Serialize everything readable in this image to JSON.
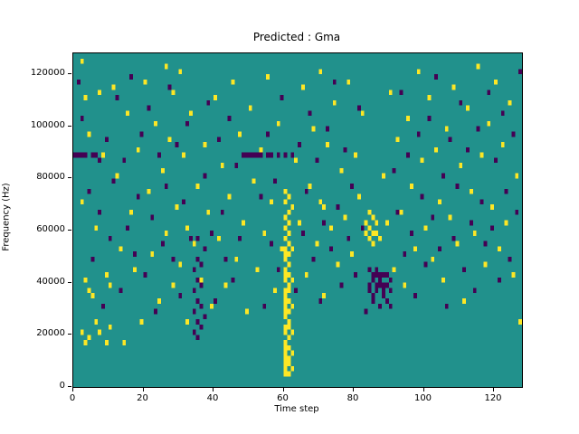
{
  "figure": {
    "title": "Predicted : Gma",
    "xlabel": "Time step",
    "ylabel": "Frequency (Hz)"
  },
  "chart_data": {
    "type": "heatmap",
    "title": "Predicted : Gma",
    "xlabel": "Time step",
    "ylabel": "Frequency (Hz)",
    "xlim": [
      0,
      128
    ],
    "ylim": [
      0,
      128000
    ],
    "xticks": [
      0,
      20,
      40,
      60,
      80,
      100,
      120
    ],
    "yticks": [
      0,
      20000,
      40000,
      60000,
      80000,
      100000,
      120000
    ],
    "grid": {
      "cols": 128,
      "rows": 64,
      "cell_hz": 2000
    },
    "colors": {
      "background": "#21918c",
      "positive": "#fde725",
      "negative": "#440154"
    },
    "legend": "none",
    "cells_yellow": [
      [
        60,
        2
      ],
      [
        60,
        3
      ],
      [
        60,
        4
      ],
      [
        60,
        5
      ],
      [
        60,
        6
      ],
      [
        60,
        7
      ],
      [
        60,
        8
      ],
      [
        60,
        10
      ],
      [
        60,
        11
      ],
      [
        60,
        13
      ],
      [
        60,
        14
      ],
      [
        60,
        15
      ],
      [
        60,
        16
      ],
      [
        60,
        17
      ],
      [
        60,
        18
      ],
      [
        60,
        20
      ],
      [
        60,
        21
      ],
      [
        60,
        22
      ],
      [
        60,
        24
      ],
      [
        60,
        25
      ],
      [
        60,
        26
      ],
      [
        60,
        28
      ],
      [
        60,
        30
      ],
      [
        60,
        32
      ],
      [
        60,
        35
      ],
      [
        60,
        37
      ],
      [
        61,
        2
      ],
      [
        61,
        4
      ],
      [
        61,
        5
      ],
      [
        61,
        7
      ],
      [
        61,
        9
      ],
      [
        61,
        11
      ],
      [
        61,
        12
      ],
      [
        61,
        14
      ],
      [
        61,
        16
      ],
      [
        61,
        18
      ],
      [
        61,
        19
      ],
      [
        61,
        21
      ],
      [
        61,
        23
      ],
      [
        61,
        25
      ],
      [
        61,
        27
      ],
      [
        61,
        29
      ],
      [
        61,
        31
      ],
      [
        61,
        33
      ],
      [
        61,
        36
      ],
      [
        62,
        3
      ],
      [
        62,
        6
      ],
      [
        62,
        10
      ],
      [
        62,
        15
      ],
      [
        62,
        20
      ],
      [
        62,
        26
      ],
      [
        62,
        34
      ],
      [
        83,
        29
      ],
      [
        83,
        31
      ],
      [
        84,
        28
      ],
      [
        84,
        30
      ],
      [
        84,
        33
      ],
      [
        85,
        27
      ],
      [
        85,
        29
      ],
      [
        85,
        32
      ],
      [
        86,
        29
      ],
      [
        86,
        31
      ],
      [
        70,
        35
      ],
      [
        71,
        34
      ],
      [
        2,
        10
      ],
      [
        3,
        8
      ],
      [
        4,
        9
      ],
      [
        6,
        12
      ],
      [
        7,
        10
      ],
      [
        9,
        8
      ],
      [
        10,
        11
      ],
      [
        2,
        62
      ],
      [
        3,
        55
      ],
      [
        4,
        48
      ],
      [
        2,
        35
      ],
      [
        3,
        20
      ],
      [
        4,
        18
      ],
      [
        5,
        17
      ],
      [
        6,
        30
      ],
      [
        7,
        56
      ],
      [
        8,
        44
      ],
      [
        9,
        21
      ],
      [
        10,
        19
      ],
      [
        11,
        57
      ],
      [
        12,
        40
      ],
      [
        13,
        26
      ],
      [
        14,
        8
      ],
      [
        15,
        52
      ],
      [
        16,
        33
      ],
      [
        17,
        22
      ],
      [
        18,
        45
      ],
      [
        19,
        12
      ],
      [
        20,
        58
      ],
      [
        21,
        37
      ],
      [
        22,
        25
      ],
      [
        23,
        50
      ],
      [
        24,
        16
      ],
      [
        25,
        41
      ],
      [
        26,
        29
      ],
      [
        26,
        61
      ],
      [
        27,
        47
      ],
      [
        28,
        19
      ],
      [
        28,
        56
      ],
      [
        29,
        34
      ],
      [
        30,
        23
      ],
      [
        30,
        60
      ],
      [
        31,
        44
      ],
      [
        32,
        30
      ],
      [
        32,
        12
      ],
      [
        33,
        52
      ],
      [
        34,
        27
      ],
      [
        35,
        38
      ],
      [
        36,
        20
      ],
      [
        37,
        46
      ],
      [
        38,
        33
      ],
      [
        39,
        15
      ],
      [
        40,
        55
      ],
      [
        41,
        28
      ],
      [
        42,
        42
      ],
      [
        43,
        19
      ],
      [
        44,
        36
      ],
      [
        45,
        58
      ],
      [
        46,
        24
      ],
      [
        47,
        48
      ],
      [
        48,
        31
      ],
      [
        49,
        14
      ],
      [
        50,
        53
      ],
      [
        51,
        39
      ],
      [
        52,
        22
      ],
      [
        53,
        45
      ],
      [
        54,
        29
      ],
      [
        55,
        59
      ],
      [
        56,
        35
      ],
      [
        57,
        18
      ],
      [
        58,
        50
      ],
      [
        59,
        26
      ],
      [
        63,
        43
      ],
      [
        64,
        31
      ],
      [
        65,
        57
      ],
      [
        66,
        21
      ],
      [
        67,
        38
      ],
      [
        68,
        49
      ],
      [
        69,
        27
      ],
      [
        70,
        60
      ],
      [
        71,
        17
      ],
      [
        72,
        46
      ],
      [
        73,
        30
      ],
      [
        74,
        54
      ],
      [
        75,
        23
      ],
      [
        76,
        41
      ],
      [
        77,
        32
      ],
      [
        78,
        58
      ],
      [
        79,
        25
      ],
      [
        80,
        44
      ],
      [
        81,
        36
      ],
      [
        82,
        52
      ],
      [
        87,
        28
      ],
      [
        88,
        40
      ],
      [
        89,
        31
      ],
      [
        90,
        56
      ],
      [
        91,
        22
      ],
      [
        92,
        47
      ],
      [
        93,
        33
      ],
      [
        94,
        19
      ],
      [
        95,
        51
      ],
      [
        96,
        38
      ],
      [
        97,
        26
      ],
      [
        98,
        60
      ],
      [
        99,
        43
      ],
      [
        100,
        30
      ],
      [
        101,
        55
      ],
      [
        102,
        24
      ],
      [
        103,
        45
      ],
      [
        104,
        35
      ],
      [
        105,
        20
      ],
      [
        106,
        49
      ],
      [
        107,
        32
      ],
      [
        108,
        57
      ],
      [
        109,
        27
      ],
      [
        110,
        42
      ],
      [
        111,
        16
      ],
      [
        112,
        53
      ],
      [
        113,
        37
      ],
      [
        114,
        29
      ],
      [
        115,
        61
      ],
      [
        116,
        44
      ],
      [
        117,
        23
      ],
      [
        118,
        50
      ],
      [
        119,
        34
      ],
      [
        120,
        58
      ],
      [
        121,
        26
      ],
      [
        122,
        46
      ],
      [
        123,
        31
      ],
      [
        124,
        54
      ],
      [
        125,
        21
      ],
      [
        126,
        40
      ],
      [
        127,
        12
      ]
    ],
    "cells_purple": [
      [
        0,
        44
      ],
      [
        1,
        44
      ],
      [
        2,
        44
      ],
      [
        3,
        44
      ],
      [
        5,
        44
      ],
      [
        6,
        44
      ],
      [
        7,
        43
      ],
      [
        48,
        44
      ],
      [
        49,
        44
      ],
      [
        50,
        44
      ],
      [
        51,
        44
      ],
      [
        52,
        44
      ],
      [
        53,
        44
      ],
      [
        55,
        44
      ],
      [
        56,
        44
      ],
      [
        58,
        44
      ],
      [
        60,
        44
      ],
      [
        62,
        44
      ],
      [
        84,
        18
      ],
      [
        84,
        19
      ],
      [
        84,
        22
      ],
      [
        85,
        16
      ],
      [
        85,
        17
      ],
      [
        85,
        20
      ],
      [
        85,
        21
      ],
      [
        86,
        18
      ],
      [
        86,
        19
      ],
      [
        86,
        21
      ],
      [
        86,
        22
      ],
      [
        87,
        15
      ],
      [
        87,
        19
      ],
      [
        87,
        20
      ],
      [
        87,
        21
      ],
      [
        88,
        17
      ],
      [
        88,
        18
      ],
      [
        88,
        19
      ],
      [
        88,
        21
      ],
      [
        89,
        16
      ],
      [
        89,
        19
      ],
      [
        89,
        21
      ],
      [
        90,
        15
      ],
      [
        90,
        18
      ],
      [
        90,
        20
      ],
      [
        34,
        10
      ],
      [
        34,
        14
      ],
      [
        34,
        18
      ],
      [
        34,
        22
      ],
      [
        35,
        9
      ],
      [
        35,
        12
      ],
      [
        35,
        16
      ],
      [
        35,
        20
      ],
      [
        35,
        24
      ],
      [
        35,
        28
      ],
      [
        36,
        11
      ],
      [
        36,
        15
      ],
      [
        36,
        19
      ],
      [
        36,
        23
      ],
      [
        37,
        13
      ],
      [
        37,
        26
      ],
      [
        1,
        58
      ],
      [
        2,
        51
      ],
      [
        4,
        37
      ],
      [
        5,
        24
      ],
      [
        7,
        33
      ],
      [
        8,
        15
      ],
      [
        9,
        47
      ],
      [
        10,
        28
      ],
      [
        11,
        39
      ],
      [
        12,
        55
      ],
      [
        13,
        18
      ],
      [
        14,
        43
      ],
      [
        15,
        30
      ],
      [
        16,
        59
      ],
      [
        17,
        25
      ],
      [
        18,
        36
      ],
      [
        19,
        48
      ],
      [
        20,
        21
      ],
      [
        21,
        53
      ],
      [
        22,
        32
      ],
      [
        23,
        14
      ],
      [
        24,
        44
      ],
      [
        25,
        27
      ],
      [
        26,
        38
      ],
      [
        27,
        57
      ],
      [
        28,
        24
      ],
      [
        29,
        46
      ],
      [
        30,
        17
      ],
      [
        31,
        35
      ],
      [
        32,
        50
      ],
      [
        33,
        28
      ],
      [
        37,
        40
      ],
      [
        38,
        54
      ],
      [
        39,
        29
      ],
      [
        40,
        16
      ],
      [
        41,
        47
      ],
      [
        42,
        33
      ],
      [
        43,
        24
      ],
      [
        44,
        51
      ],
      [
        45,
        20
      ],
      [
        46,
        42
      ],
      [
        47,
        28
      ],
      [
        53,
        36
      ],
      [
        54,
        15
      ],
      [
        55,
        48
      ],
      [
        56,
        27
      ],
      [
        57,
        39
      ],
      [
        58,
        22
      ],
      [
        59,
        55
      ],
      [
        63,
        18
      ],
      [
        64,
        46
      ],
      [
        65,
        29
      ],
      [
        66,
        37
      ],
      [
        67,
        52
      ],
      [
        68,
        24
      ],
      [
        69,
        43
      ],
      [
        70,
        16
      ],
      [
        71,
        31
      ],
      [
        72,
        49
      ],
      [
        73,
        26
      ],
      [
        74,
        58
      ],
      [
        75,
        34
      ],
      [
        76,
        19
      ],
      [
        77,
        45
      ],
      [
        78,
        28
      ],
      [
        79,
        38
      ],
      [
        80,
        21
      ],
      [
        81,
        53
      ],
      [
        82,
        30
      ],
      [
        83,
        14
      ],
      [
        91,
        41
      ],
      [
        92,
        33
      ],
      [
        93,
        56
      ],
      [
        94,
        25
      ],
      [
        95,
        44
      ],
      [
        96,
        29
      ],
      [
        97,
        17
      ],
      [
        98,
        48
      ],
      [
        99,
        36
      ],
      [
        100,
        23
      ],
      [
        101,
        51
      ],
      [
        102,
        32
      ],
      [
        103,
        59
      ],
      [
        104,
        26
      ],
      [
        105,
        40
      ],
      [
        106,
        15
      ],
      [
        107,
        47
      ],
      [
        108,
        28
      ],
      [
        109,
        38
      ],
      [
        110,
        54
      ],
      [
        111,
        22
      ],
      [
        112,
        45
      ],
      [
        113,
        31
      ],
      [
        114,
        18
      ],
      [
        115,
        49
      ],
      [
        116,
        35
      ],
      [
        117,
        27
      ],
      [
        118,
        56
      ],
      [
        119,
        30
      ],
      [
        120,
        43
      ],
      [
        121,
        20
      ],
      [
        122,
        52
      ],
      [
        123,
        37
      ],
      [
        124,
        24
      ],
      [
        125,
        48
      ],
      [
        126,
        33
      ],
      [
        127,
        60
      ]
    ]
  }
}
